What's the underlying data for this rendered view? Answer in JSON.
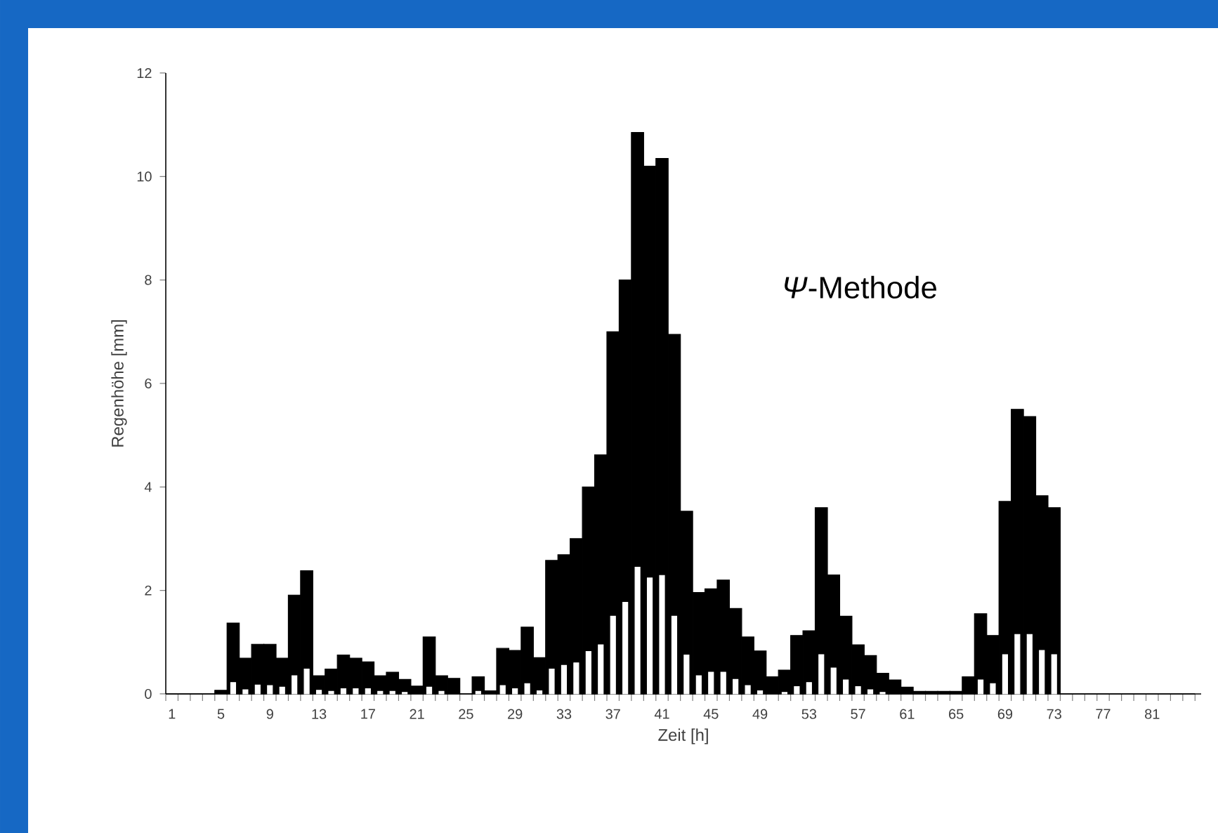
{
  "chart_data": {
    "type": "bar",
    "xlabel": "Zeit [h]",
    "ylabel": "Regenhöhe [mm]",
    "annotations": [
      "*Ψ*-Methode"
    ],
    "x": [
      1,
      2,
      3,
      4,
      5,
      6,
      7,
      8,
      9,
      10,
      11,
      12,
      13,
      14,
      15,
      16,
      17,
      18,
      19,
      20,
      21,
      22,
      23,
      24,
      25,
      26,
      27,
      28,
      29,
      30,
      31,
      32,
      33,
      34,
      35,
      36,
      37,
      38,
      39,
      40,
      41,
      42,
      43,
      44,
      45,
      46,
      47,
      48,
      49,
      50,
      51,
      52,
      53,
      54,
      55,
      56,
      57,
      58,
      59,
      60,
      61,
      62,
      63,
      64,
      65,
      66,
      67,
      68,
      69,
      70,
      71,
      72,
      73,
      74,
      75,
      76,
      77,
      78,
      79,
      80,
      81,
      82,
      83,
      84
    ],
    "series": [
      {
        "color": "#000000",
        "values": [
          0,
          0,
          0,
          0,
          0.07,
          1.37,
          0.69,
          0.96,
          0.96,
          0.69,
          1.91,
          2.38,
          0.35,
          0.48,
          0.75,
          0.69,
          0.62,
          0.35,
          0.42,
          0.28,
          0.15,
          1.1,
          0.35,
          0.3,
          0,
          0.33,
          0.06,
          0.88,
          0.84,
          1.29,
          0.7,
          2.58,
          2.69,
          3.0,
          4.0,
          4.62,
          7.0,
          8.0,
          10.85,
          10.2,
          10.35,
          6.95,
          3.53,
          1.96,
          2.03,
          2.2,
          1.65,
          1.1,
          0.83,
          0.33,
          0.46,
          1.13,
          1.22,
          3.6,
          2.3,
          1.5,
          0.95,
          0.74,
          0.4,
          0.27,
          0.13,
          0.05,
          0.05,
          0.05,
          0.05,
          0.33,
          1.55,
          1.13,
          3.72,
          5.5,
          5.36,
          3.83,
          3.6,
          0,
          0,
          0,
          0,
          0,
          0,
          0,
          0,
          0,
          0,
          0
        ]
      },
      {
        "color": "#ffffff",
        "values": [
          null,
          null,
          null,
          null,
          null,
          0.22,
          0.08,
          0.17,
          0.16,
          0.13,
          0.35,
          0.48,
          0.07,
          0.05,
          0.1,
          0.1,
          0.1,
          0.05,
          0.05,
          0.03,
          null,
          0.13,
          0.05,
          null,
          null,
          0.05,
          null,
          0.16,
          0.1,
          0.2,
          0.06,
          0.48,
          0.55,
          0.6,
          0.82,
          0.95,
          1.5,
          1.77,
          2.45,
          2.24,
          2.29,
          1.5,
          0.75,
          0.35,
          0.42,
          0.42,
          0.28,
          0.16,
          0.06,
          null,
          0.03,
          0.14,
          0.22,
          0.76,
          0.5,
          0.27,
          0.14,
          0.08,
          0.03,
          null,
          null,
          null,
          null,
          null,
          null,
          null,
          0.27,
          0.2,
          0.76,
          1.15,
          1.15,
          0.84,
          0.76,
          null,
          null,
          null,
          null,
          null,
          null,
          null,
          null,
          null,
          null,
          null
        ]
      }
    ],
    "xlim": [
      0.5,
      85
    ],
    "xticks": [
      1,
      5,
      9,
      13,
      17,
      21,
      25,
      29,
      33,
      37,
      41,
      45,
      49,
      53,
      57,
      61,
      65,
      69,
      73,
      77,
      81
    ],
    "ylim": [
      0,
      12
    ],
    "yticks": [
      0,
      2,
      4,
      6,
      8,
      10,
      12
    ]
  }
}
